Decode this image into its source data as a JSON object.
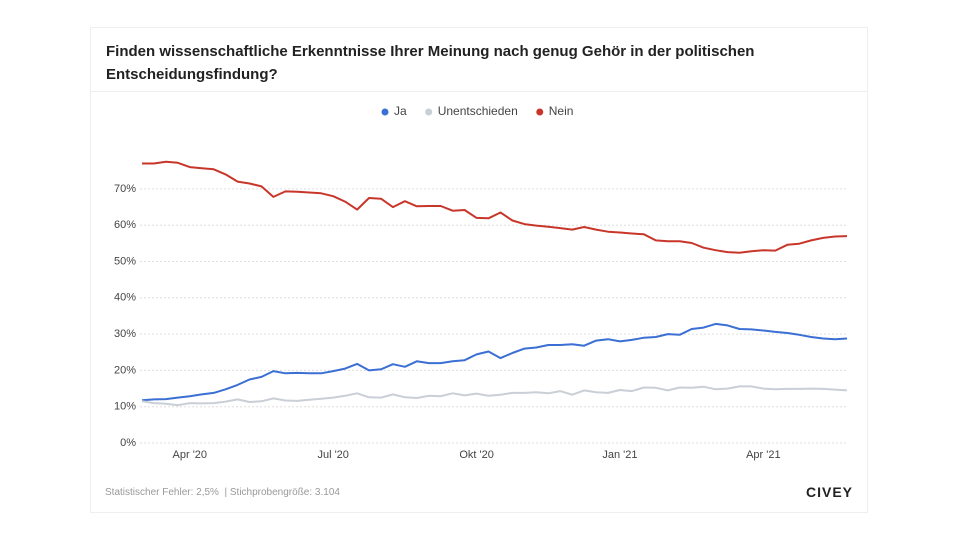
{
  "chart_data": {
    "type": "line",
    "title": "Finden wissenschaftliche Erkenntnisse Ihrer Meinung nach genug Gehör in der politischen Entscheidungsfindung?",
    "note": "Statistischer Fehler: 2,5%  | Stichprobengröße: 3.104",
    "brand": "CIVEY",
    "categories": [
      null,
      null,
      null,
      null,
      "Apr '20",
      null,
      null,
      null,
      null,
      null,
      null,
      null,
      null,
      null,
      null,
      null,
      "Jul '20",
      null,
      null,
      null,
      null,
      null,
      null,
      null,
      null,
      null,
      null,
      null,
      "Okt '20",
      null,
      null,
      null,
      null,
      null,
      null,
      null,
      null,
      null,
      null,
      null,
      "Jan '21",
      null,
      null,
      null,
      null,
      null,
      null,
      null,
      null,
      null,
      null,
      null,
      "Apr '21",
      null,
      null,
      null,
      null,
      null,
      null,
      null
    ],
    "series": [
      {
        "name": "Ja",
        "color": "#3b6fd4",
        "values": [
          11.8,
          12,
          12.1,
          12.5,
          12.9,
          13.4,
          13.8,
          14.8,
          16,
          17.5,
          18.2,
          19.8,
          19.2,
          19.3,
          19.2,
          19.2,
          19.8,
          20.5,
          21.8,
          20,
          20.3,
          21.7,
          21,
          22.5,
          22,
          22,
          22.5,
          22.8,
          24.4,
          25.2,
          23.4,
          24.8,
          26,
          26.3,
          27,
          27,
          27.2,
          26.8,
          28.2,
          28.6,
          28,
          28.4,
          29,
          29.2,
          30,
          29.8,
          31.4,
          31.8,
          32.8,
          32.4,
          31.4,
          31.3,
          31,
          30.6,
          30.3,
          29.8,
          29.2,
          28.8,
          28.6,
          28.8
        ]
      },
      {
        "name": "Unentschieden",
        "color": "#c9cfd6",
        "values": [
          11.5,
          11,
          10.8,
          10.4,
          11,
          10.9,
          11,
          11.4,
          12,
          11.3,
          11.5,
          12.3,
          11.7,
          11.6,
          11.9,
          12.2,
          12.5,
          13,
          13.7,
          12.6,
          12.5,
          13.4,
          12.6,
          12.4,
          13,
          12.9,
          13.7,
          13.1,
          13.6,
          13,
          13.3,
          13.8,
          13.8,
          14,
          13.7,
          14.3,
          13.3,
          14.5,
          14,
          13.8,
          14.6,
          14.3,
          15.3,
          15.2,
          14.5,
          15.3,
          15.2,
          15.5,
          14.8,
          15,
          15.6,
          15.6,
          15,
          14.8,
          14.9,
          14.9,
          15,
          14.9,
          14.7,
          14.5
        ]
      },
      {
        "name": "Nein",
        "color": "#c8362a",
        "values": [
          77,
          77,
          77.5,
          77.2,
          76,
          75.7,
          75.4,
          74,
          72,
          71.5,
          70.7,
          67.8,
          69.3,
          69.2,
          69,
          68.8,
          68,
          66.5,
          64.3,
          67.5,
          67.3,
          65,
          66.6,
          65.2,
          65.3,
          65.3,
          64,
          64.2,
          62,
          61.9,
          63.5,
          61.3,
          60.3,
          59.9,
          59.6,
          59.2,
          58.8,
          59.5,
          58.8,
          58.2,
          58,
          57.7,
          57.5,
          55.8,
          55.6,
          55.6,
          55.1,
          53.8,
          53.1,
          52.6,
          52.4,
          52.8,
          53.1,
          53,
          54.6,
          54.9,
          55.8,
          56.5,
          56.9,
          57
        ]
      }
    ],
    "ylim": [
      0,
      80
    ],
    "yticks": [
      {
        "value": 0,
        "label": "0%"
      },
      {
        "value": 10,
        "label": "10%"
      },
      {
        "value": 20,
        "label": "20%"
      },
      {
        "value": 30,
        "label": "30%"
      },
      {
        "value": 40,
        "label": "40%"
      },
      {
        "value": 50,
        "label": "50%"
      },
      {
        "value": 60,
        "label": "60%"
      },
      {
        "value": 70,
        "label": "70%"
      }
    ],
    "grid": true,
    "legend": "top"
  }
}
